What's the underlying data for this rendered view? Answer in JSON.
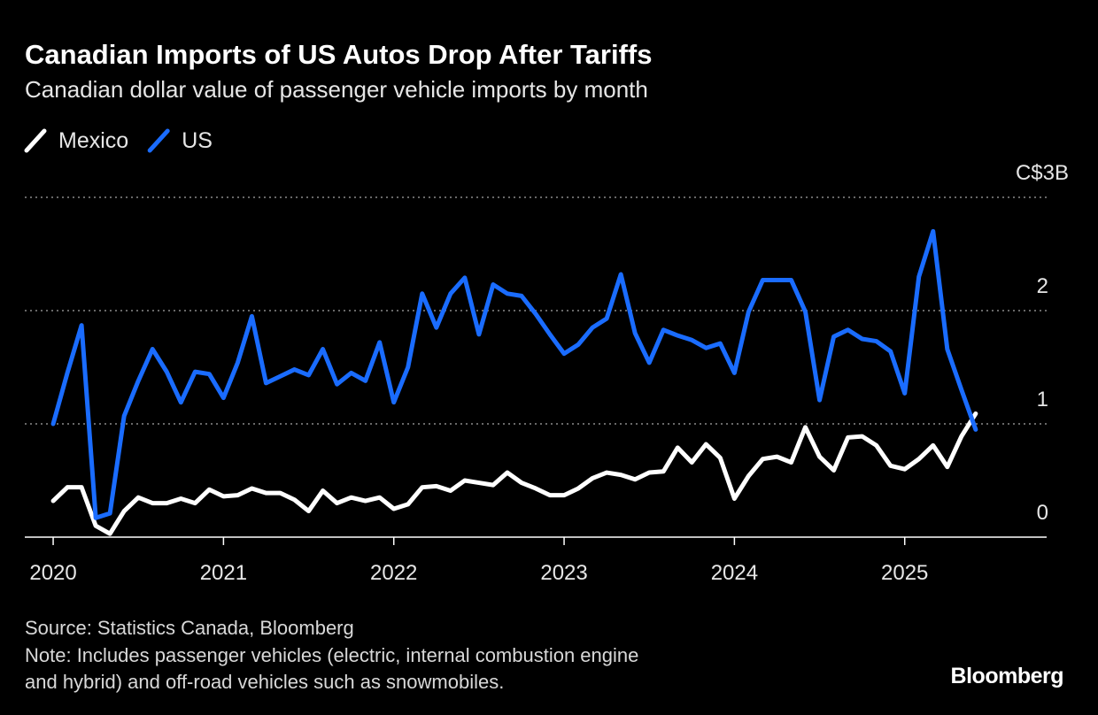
{
  "chart_data": {
    "type": "line",
    "title": "Canadian Imports of US Autos Drop After Tariffs",
    "subtitle": "Canadian dollar value of passenger vehicle imports by month",
    "x": [
      "2020-01",
      "2020-02",
      "2020-03",
      "2020-04",
      "2020-05",
      "2020-06",
      "2020-07",
      "2020-08",
      "2020-09",
      "2020-10",
      "2020-11",
      "2020-12",
      "2021-01",
      "2021-02",
      "2021-03",
      "2021-04",
      "2021-05",
      "2021-06",
      "2021-07",
      "2021-08",
      "2021-09",
      "2021-10",
      "2021-11",
      "2021-12",
      "2022-01",
      "2022-02",
      "2022-03",
      "2022-04",
      "2022-05",
      "2022-06",
      "2022-07",
      "2022-08",
      "2022-09",
      "2022-10",
      "2022-11",
      "2022-12",
      "2023-01",
      "2023-02",
      "2023-03",
      "2023-04",
      "2023-05",
      "2023-06",
      "2023-07",
      "2023-08",
      "2023-09",
      "2023-10",
      "2023-11",
      "2023-12",
      "2024-01",
      "2024-02",
      "2024-03",
      "2024-04",
      "2024-05",
      "2024-06",
      "2024-07",
      "2024-08",
      "2024-09",
      "2024-10",
      "2024-11",
      "2024-12",
      "2025-01",
      "2025-02",
      "2025-03",
      "2025-04",
      "2025-05",
      "2025-06"
    ],
    "series": [
      {
        "name": "Mexico",
        "color": "#ffffff",
        "values": [
          0.32,
          0.44,
          0.44,
          0.1,
          0.03,
          0.23,
          0.35,
          0.3,
          0.3,
          0.34,
          0.3,
          0.42,
          0.36,
          0.37,
          0.43,
          0.39,
          0.39,
          0.33,
          0.23,
          0.41,
          0.3,
          0.35,
          0.32,
          0.35,
          0.25,
          0.29,
          0.44,
          0.45,
          0.41,
          0.5,
          0.48,
          0.46,
          0.57,
          0.48,
          0.43,
          0.37,
          0.37,
          0.43,
          0.52,
          0.57,
          0.55,
          0.51,
          0.57,
          0.58,
          0.79,
          0.66,
          0.82,
          0.7,
          0.34,
          0.54,
          0.69,
          0.71,
          0.66,
          0.97,
          0.71,
          0.59,
          0.88,
          0.89,
          0.81,
          0.63,
          0.6,
          0.69,
          0.81,
          0.62,
          0.89,
          1.09
        ]
      },
      {
        "name": "US",
        "color": "#1a6cff",
        "values": [
          1.0,
          1.45,
          1.87,
          0.17,
          0.21,
          1.07,
          1.38,
          1.66,
          1.46,
          1.19,
          1.46,
          1.44,
          1.23,
          1.54,
          1.95,
          1.36,
          1.42,
          1.48,
          1.43,
          1.66,
          1.35,
          1.45,
          1.38,
          1.72,
          1.19,
          1.5,
          2.15,
          1.85,
          2.15,
          2.29,
          1.79,
          2.23,
          2.15,
          2.13,
          1.97,
          1.79,
          1.62,
          1.7,
          1.85,
          1.93,
          2.32,
          1.8,
          1.54,
          1.83,
          1.78,
          1.74,
          1.67,
          1.71,
          1.45,
          1.99,
          2.27,
          2.27,
          2.27,
          1.99,
          1.21,
          1.77,
          1.83,
          1.75,
          1.73,
          1.64,
          1.27,
          2.3,
          2.7,
          1.66,
          1.3,
          0.95
        ]
      }
    ],
    "xlim": [
      "2019-11",
      "2025-11"
    ],
    "xticks": [
      2020,
      2021,
      2022,
      2023,
      2024,
      2025
    ],
    "ylim": [
      0,
      3
    ],
    "yticks": [
      0,
      1,
      2,
      {
        "value": 3,
        "label": "C$3B"
      }
    ],
    "grid": true,
    "legend": "top-left",
    "source": "Source: Statistics Canada, Bloomberg",
    "note": [
      "Note: Includes passenger vehicles (electric, internal combustion engine",
      "and hybrid) and off-road vehicles such as snowmobiles."
    ],
    "brand": "Bloomberg"
  }
}
